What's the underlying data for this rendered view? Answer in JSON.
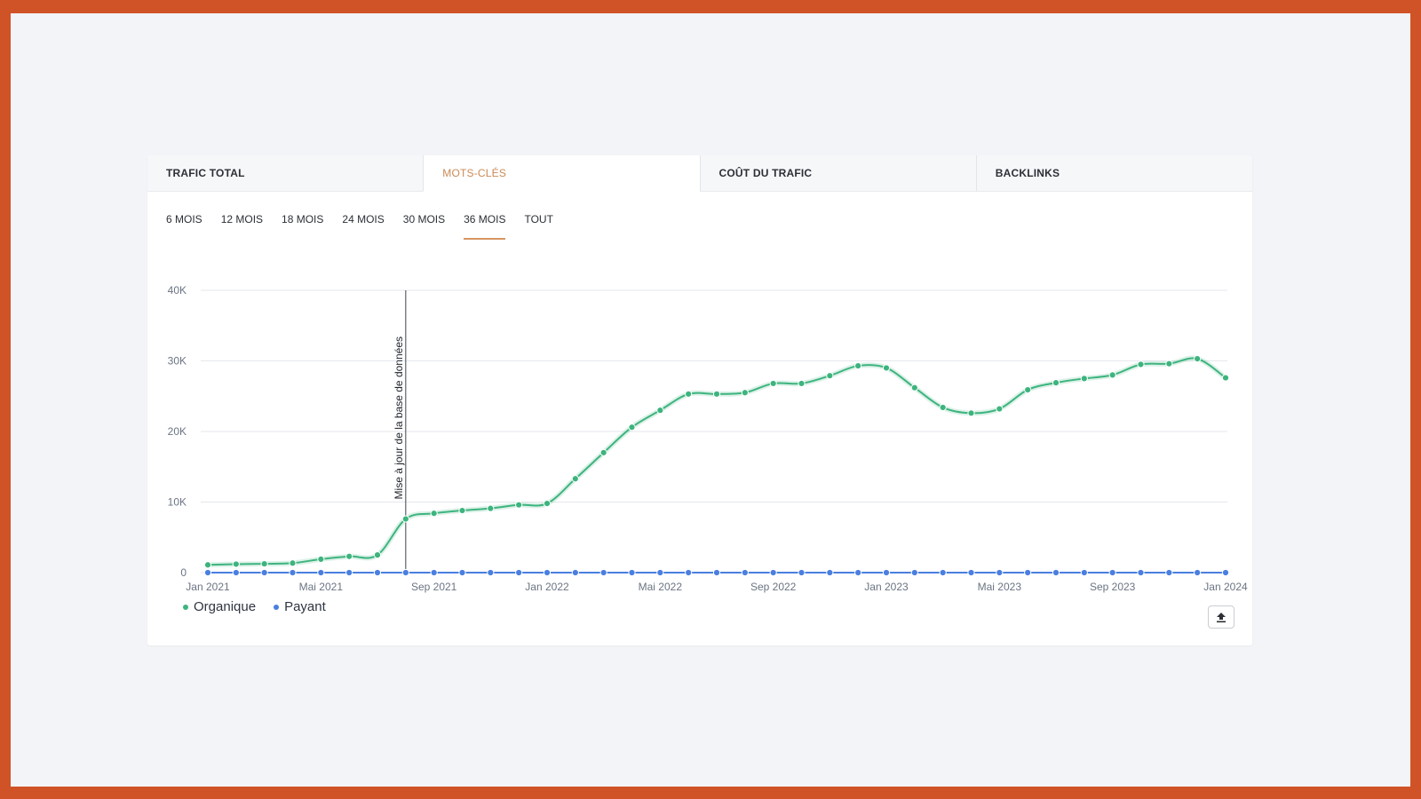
{
  "tabs": [
    {
      "label": "TRAFIC TOTAL",
      "active": false
    },
    {
      "label": "MOTS-CLÉS",
      "active": true
    },
    {
      "label": "COÛT DU TRAFIC",
      "active": false
    },
    {
      "label": "BACKLINKS",
      "active": false
    }
  ],
  "periods": [
    {
      "label": "6 MOIS",
      "active": false
    },
    {
      "label": "12 MOIS",
      "active": false
    },
    {
      "label": "18 MOIS",
      "active": false
    },
    {
      "label": "24 MOIS",
      "active": false
    },
    {
      "label": "30 MOIS",
      "active": false
    },
    {
      "label": "36 MOIS",
      "active": true
    },
    {
      "label": "TOUT",
      "active": false
    }
  ],
  "legend": [
    {
      "label": "Organique",
      "color": "#3DB47E"
    },
    {
      "label": "Payant",
      "color": "#4A7FE0"
    }
  ],
  "export_icon": "upload-icon",
  "colors": {
    "frame": "#D05327",
    "accent": "#D79663",
    "organic": "#3DB47E",
    "paid": "#4A7FE0"
  },
  "chart_data": {
    "type": "line",
    "x_tick_labels": [
      "Jan 2021",
      "Mai 2021",
      "Sep 2021",
      "Jan 2022",
      "Mai 2022",
      "Sep 2022",
      "Jan 2023",
      "Mai 2023",
      "Sep 2023",
      "Jan 2024"
    ],
    "y_tick_labels": [
      "0",
      "10K",
      "20K",
      "30K",
      "40K"
    ],
    "ylim": [
      0,
      40000
    ],
    "grid": true,
    "legend_position": "bottom-left",
    "annotation": {
      "label": "Mise à jour de la base de données",
      "at_index": 7
    },
    "series": [
      {
        "name": "Organique",
        "values": [
          1100,
          1200,
          1250,
          1350,
          1900,
          2300,
          2500,
          7600,
          8400,
          8800,
          9100,
          9600,
          9800,
          13300,
          17000,
          20600,
          23000,
          25300,
          25300,
          25500,
          26800,
          26800,
          27900,
          29300,
          29000,
          26200,
          23400,
          22600,
          23200,
          25900,
          26900,
          27500,
          28000,
          29500,
          29600,
          30300,
          27600
        ]
      },
      {
        "name": "Payant",
        "values": [
          0,
          0,
          0,
          0,
          0,
          0,
          0,
          0,
          0,
          0,
          0,
          0,
          0,
          0,
          0,
          0,
          0,
          0,
          0,
          0,
          0,
          0,
          0,
          0,
          0,
          0,
          0,
          0,
          0,
          0,
          0,
          0,
          0,
          0,
          0,
          0,
          0
        ]
      }
    ]
  }
}
